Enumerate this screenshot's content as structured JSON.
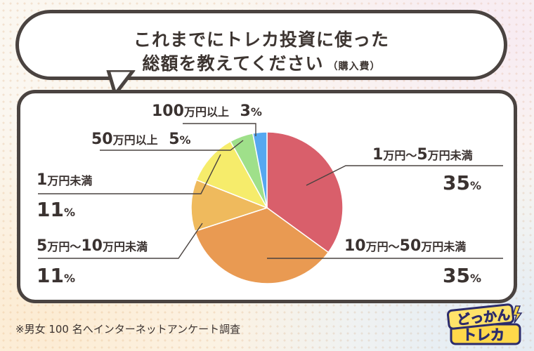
{
  "title": {
    "line1": "これまでにトレカ投資に使った",
    "line2": "総額を教えてください",
    "line2_sub": "（購入費）"
  },
  "chart_data": {
    "type": "pie",
    "start_angle_deg": 0,
    "direction": "clockwise",
    "slices": [
      {
        "label": "1万円〜5万円未満",
        "value": 35,
        "color": "#d95f6b"
      },
      {
        "label": "10万円〜50万円未満",
        "value": 35,
        "color": "#e99a52"
      },
      {
        "label": "5万円〜10万円未満",
        "value": 11,
        "color": "#efba5d"
      },
      {
        "label": "1万円未満",
        "value": 11,
        "color": "#f6ec6b"
      },
      {
        "label": "50万円以上",
        "value": 5,
        "color": "#9fe08a"
      },
      {
        "label": "100万円以上",
        "value": 3,
        "color": "#56a8f0"
      }
    ]
  },
  "labels": {
    "s1": {
      "a": "1",
      "b": "万円〜",
      "c": "5",
      "d": "万円未満",
      "pct": "35",
      "unit": "%"
    },
    "s2": {
      "a": "10",
      "b": "万円〜",
      "c": "50",
      "d": "万円未満",
      "pct": "35",
      "unit": "%"
    },
    "s3": {
      "a": "5",
      "b": "万円〜",
      "c": "10",
      "d": "万円未満",
      "pct": "11",
      "unit": "%"
    },
    "s4": {
      "a": "1",
      "d": "万円未満",
      "pct": "11",
      "unit": "%"
    },
    "s5": {
      "a": "50",
      "d": "万円以上",
      "pct": "5",
      "unit": "%"
    },
    "s6": {
      "a": "100",
      "d": "万円以上",
      "pct": "3",
      "unit": "%"
    }
  },
  "footnote": "※男女 100 名へインターネットアンケート調査",
  "logo": {
    "line1": "どっかん",
    "line2": "トレカ"
  }
}
